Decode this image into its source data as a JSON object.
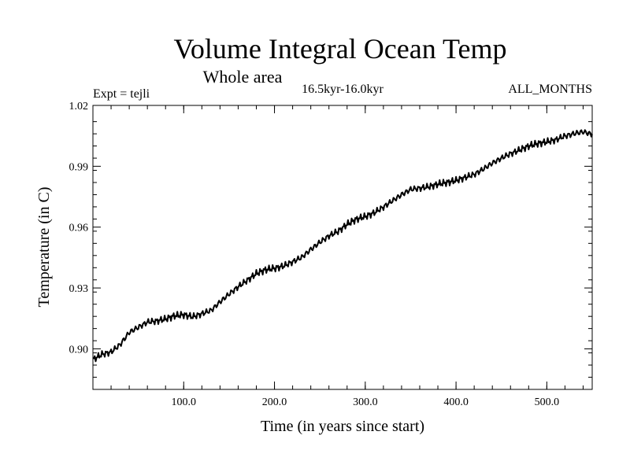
{
  "chart_data": {
    "type": "line",
    "title": "Volume Integral Ocean Temp",
    "subtitle": "Whole area",
    "period": "16.5kyr-16.0kyr",
    "left_label": "Expt = tejli",
    "right_label": "ALL_MONTHS",
    "xlabel": "Time (in years since start)",
    "ylabel": "Temperature (in C)",
    "xlim": [
      0,
      550
    ],
    "ylim": [
      0.88,
      1.02
    ],
    "x_tick_labels": [
      "100.0",
      "200.0",
      "300.0",
      "400.0",
      "500.0"
    ],
    "x_tick_values": [
      100,
      200,
      300,
      400,
      500
    ],
    "y_tick_labels": [
      "0.90",
      "0.93",
      "0.96",
      "0.99",
      "1.02"
    ],
    "y_tick_values": [
      0.9,
      0.93,
      0.96,
      0.99,
      1.02
    ],
    "x_minor_step": 20,
    "y_minor_step": 0.006,
    "line_color": "#000000",
    "series": [
      {
        "name": "Volume Integral Ocean Temp",
        "x": [
          0,
          10,
          20,
          30,
          40,
          50,
          60,
          70,
          80,
          90,
          100,
          110,
          120,
          130,
          140,
          150,
          160,
          170,
          180,
          190,
          200,
          210,
          220,
          230,
          240,
          250,
          260,
          270,
          280,
          290,
          300,
          310,
          320,
          330,
          340,
          350,
          360,
          370,
          380,
          390,
          400,
          410,
          420,
          430,
          440,
          450,
          460,
          470,
          480,
          490,
          500,
          510,
          520,
          530,
          540,
          550
        ],
        "y": [
          0.8947,
          0.8973,
          0.8984,
          0.9021,
          0.9081,
          0.9106,
          0.9132,
          0.9137,
          0.9147,
          0.9163,
          0.9168,
          0.9158,
          0.9173,
          0.9189,
          0.9231,
          0.927,
          0.9306,
          0.9338,
          0.9371,
          0.939,
          0.9397,
          0.9408,
          0.9429,
          0.9451,
          0.949,
          0.9525,
          0.9557,
          0.9579,
          0.9614,
          0.9639,
          0.9652,
          0.9671,
          0.9699,
          0.973,
          0.976,
          0.9786,
          0.9792,
          0.9799,
          0.9812,
          0.982,
          0.983,
          0.9845,
          0.986,
          0.9886,
          0.9916,
          0.994,
          0.9962,
          0.998,
          1.0,
          1.0012,
          1.002,
          1.0031,
          1.0049,
          1.0061,
          1.007,
          1.0058
        ]
      }
    ]
  }
}
